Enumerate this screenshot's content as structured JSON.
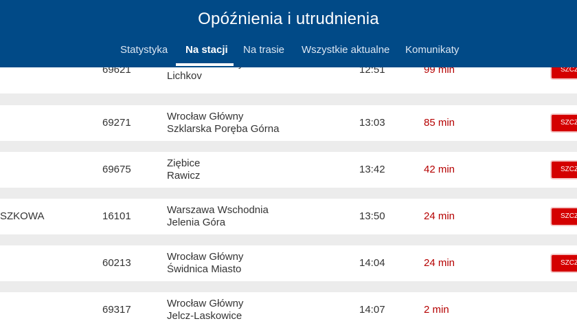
{
  "header": {
    "title": "Opóźnienia i utrudnienia",
    "tabs": [
      {
        "label": "Statystyka",
        "active": false
      },
      {
        "label": "Na stacji",
        "active": true
      },
      {
        "label": "Na trasie",
        "active": false
      },
      {
        "label": "Wszystkie aktualne",
        "active": false
      },
      {
        "label": "Komunikaty",
        "active": false
      }
    ]
  },
  "rows": [
    {
      "carrier": "",
      "number": "69621",
      "from": "Wrocław Główny",
      "to": "Lichkov",
      "time": "12:51",
      "delay": "99 min",
      "button": "SZCZEGÓŁY"
    },
    {
      "carrier": "",
      "number": "69271",
      "from": "Wrocław Główny",
      "to": "Szklarska Poręba Górna",
      "time": "13:03",
      "delay": "85 min",
      "button": "SZCZEGÓŁY"
    },
    {
      "carrier": "",
      "number": "69675",
      "from": "Ziębice",
      "to": "Rawicz",
      "time": "13:42",
      "delay": "42 min",
      "button": "SZCZEGÓŁY"
    },
    {
      "carrier": "SZKOWA",
      "number": "16101",
      "from": "Warszawa Wschodnia",
      "to": "Jelenia Góra",
      "time": "13:50",
      "delay": "24 min",
      "button": "SZCZEGÓŁY"
    },
    {
      "carrier": "",
      "number": "60213",
      "from": "Wrocław Główny",
      "to": "Świdnica Miasto",
      "time": "14:04",
      "delay": "24 min",
      "button": "SZCZEGÓŁY"
    },
    {
      "carrier": "",
      "number": "69317",
      "from": "Wrocław Główny",
      "to": "Jelcz-Laskowice",
      "time": "14:07",
      "delay": "2 min",
      "button": ""
    }
  ],
  "colors": {
    "header_bg": "#014a87",
    "delay_text": "#b50000",
    "button_bg": "#d40000",
    "row_bg": "#ffffff",
    "gap_bg": "#ececec"
  }
}
